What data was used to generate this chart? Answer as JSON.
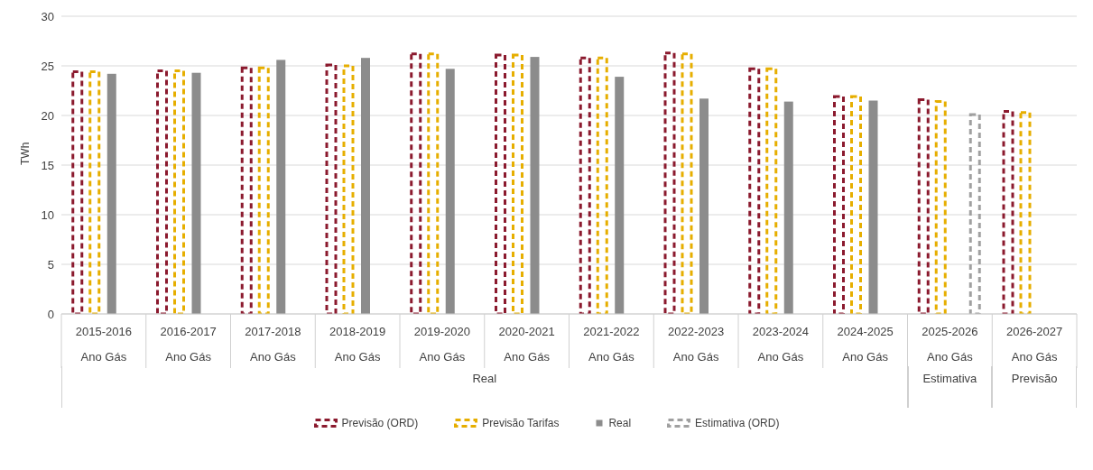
{
  "chart_data": {
    "type": "bar",
    "ylabel": "TWh",
    "categories": [
      "2015-2016\nAno Gás",
      "2016-2017\nAno Gás",
      "2017-2018\nAno Gás",
      "2018-2019\nAno Gás",
      "2019-2020\nAno Gás",
      "2020-2021\nAno Gás",
      "2021-2022\nAno Gás",
      "2022-2023\nAno Gás",
      "2023-2024\nAno Gás",
      "2024-2025\nAno Gás",
      "2025-2026\nAno Gás",
      "2026-2027\nAno Gás"
    ],
    "series": [
      {
        "name": "Previsão (ORD)",
        "color": "#8b1a2e",
        "line_style": "dashed",
        "values": [
          24.4,
          24.5,
          24.8,
          25.1,
          26.2,
          26.1,
          25.8,
          26.3,
          24.7,
          21.9,
          21.6,
          20.4
        ]
      },
      {
        "name": "Previsão Tarifas",
        "color": "#e6ae00",
        "line_style": "dashed",
        "values": [
          24.4,
          24.5,
          24.8,
          25.0,
          26.2,
          26.1,
          25.8,
          26.2,
          24.7,
          21.9,
          21.4,
          20.3
        ]
      },
      {
        "name": "Real",
        "color": "#8c8c8c",
        "values": [
          24.2,
          24.3,
          25.6,
          25.8,
          24.7,
          25.9,
          23.9,
          21.7,
          21.4,
          21.5,
          null,
          null
        ]
      },
      {
        "name": "Estimativa (ORD)",
        "color": "#a0a0a0",
        "line_style": "dashed",
        "values": [
          null,
          null,
          null,
          null,
          null,
          null,
          null,
          null,
          null,
          null,
          20.1,
          null
        ]
      }
    ],
    "ylim": [
      0,
      30
    ],
    "yticks": [
      0,
      5,
      10,
      15,
      20,
      25,
      30
    ],
    "grid": "y",
    "legend": "bottom",
    "annotations": [
      "Real",
      "Estimativa",
      "Previsão"
    ]
  }
}
